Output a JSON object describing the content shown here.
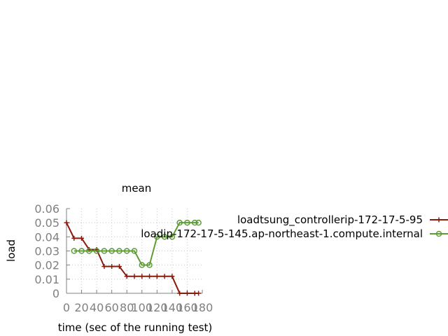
{
  "chart_data": {
    "type": "line",
    "title": "mean",
    "xlabel": "time (sec of the running test)",
    "ylabel": "load",
    "xlim": [
      0,
      180
    ],
    "ylim": [
      0,
      0.06
    ],
    "xticks": [
      0,
      20,
      40,
      60,
      80,
      100,
      120,
      140,
      160,
      180
    ],
    "xtick_labels": [
      "0",
      "20",
      "40",
      "60",
      "80",
      "100",
      "120",
      "140",
      "160",
      "180"
    ],
    "yticks": [
      0,
      0.01,
      0.02,
      0.03,
      0.04,
      0.05,
      0.06
    ],
    "ytick_labels": [
      "0",
      "0.01",
      "0.02",
      "0.03",
      "0.04",
      "0.05",
      "0.06"
    ],
    "grid": true,
    "legend_position": "right",
    "series": [
      {
        "name": "loadtsung_controllerip-172-17-5-95",
        "color": "#8b1a0e",
        "marker": "plus",
        "x": [
          0,
          10,
          20,
          30,
          40,
          50,
          60,
          70,
          80,
          90,
          100,
          110,
          120,
          130,
          140,
          150,
          160,
          170,
          175
        ],
        "y": [
          0.05,
          0.039,
          0.039,
          0.031,
          0.031,
          0.019,
          0.019,
          0.019,
          0.012,
          0.012,
          0.012,
          0.012,
          0.012,
          0.012,
          0.012,
          0.0,
          0.0,
          0.0,
          0.0
        ]
      },
      {
        "name": "loadip-172-17-5-145.ap-northeast-1.compute.internal",
        "color": "#5e9c36",
        "marker": "circle",
        "x": [
          10,
          20,
          30,
          40,
          50,
          60,
          70,
          80,
          90,
          100,
          110,
          120,
          130,
          140,
          150,
          160,
          170,
          175
        ],
        "y": [
          0.03,
          0.03,
          0.03,
          0.03,
          0.03,
          0.03,
          0.03,
          0.03,
          0.03,
          0.02,
          0.02,
          0.04,
          0.04,
          0.04,
          0.05,
          0.05,
          0.05,
          0.05
        ]
      }
    ]
  }
}
